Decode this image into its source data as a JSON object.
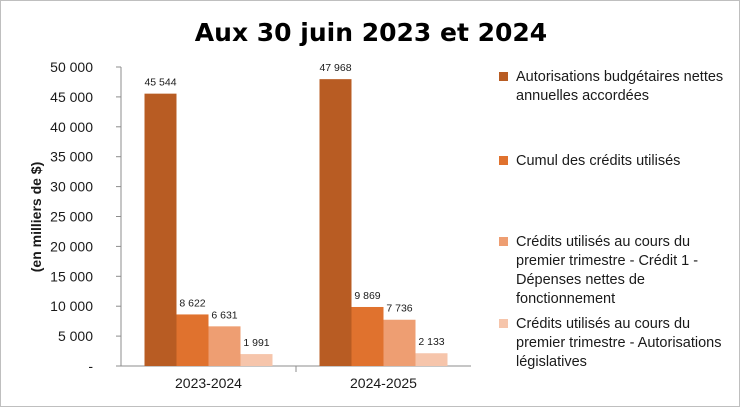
{
  "chart_data": {
    "type": "bar",
    "title": "Aux 30 juin 2023 et 2024",
    "ylabel": "(en milliers de $)",
    "xlabel": "",
    "categories": [
      "2023-2024",
      "2024-2025"
    ],
    "ylim": [
      0,
      50000
    ],
    "yticks": [
      0,
      5000,
      10000,
      15000,
      20000,
      25000,
      30000,
      35000,
      40000,
      45000,
      50000
    ],
    "ytick_labels": [
      "-",
      "5 000",
      "10 000",
      "15 000",
      "20 000",
      "25 000",
      "30 000",
      "35 000",
      "40 000",
      "45 000",
      "50 000"
    ],
    "grid": false,
    "legend_position": "right",
    "series": [
      {
        "name": "Autorisations budgétaires nettes annuelles accordées",
        "legend_lines": [
          "Autorisations budgétaires nettes",
          "annuelles accordées"
        ],
        "values": [
          45544,
          47968
        ],
        "labels": [
          "45 544",
          "47 968"
        ],
        "color": "#b85c23"
      },
      {
        "name": "Cumul des crédits utilisés",
        "legend_lines": [
          "Cumul des crédits utilisés"
        ],
        "values": [
          8622,
          9869
        ],
        "labels": [
          "8 622",
          "9 869"
        ],
        "color": "#e0722e"
      },
      {
        "name": "Crédits utilisés au cours du premier trimestre - Crédit 1 - Dépenses nettes de fonctionnement",
        "legend_lines": [
          "Crédits utilisés au cours du",
          "premier trimestre - Crédit 1 -",
          "Dépenses nettes de",
          "fonctionnement"
        ],
        "values": [
          6631,
          7736
        ],
        "labels": [
          "6 631",
          "7 736"
        ],
        "color": "#ee9e72"
      },
      {
        "name": "Crédits utilisés au cours du premier trimestre - Autorisations législatives",
        "legend_lines": [
          "Crédits utilisés au cours du",
          "premier trimestre - Autorisations",
          "législatives"
        ],
        "values": [
          1991,
          2133
        ],
        "labels": [
          "1 991",
          "2 133"
        ],
        "color": "#f6c5ab"
      }
    ]
  }
}
